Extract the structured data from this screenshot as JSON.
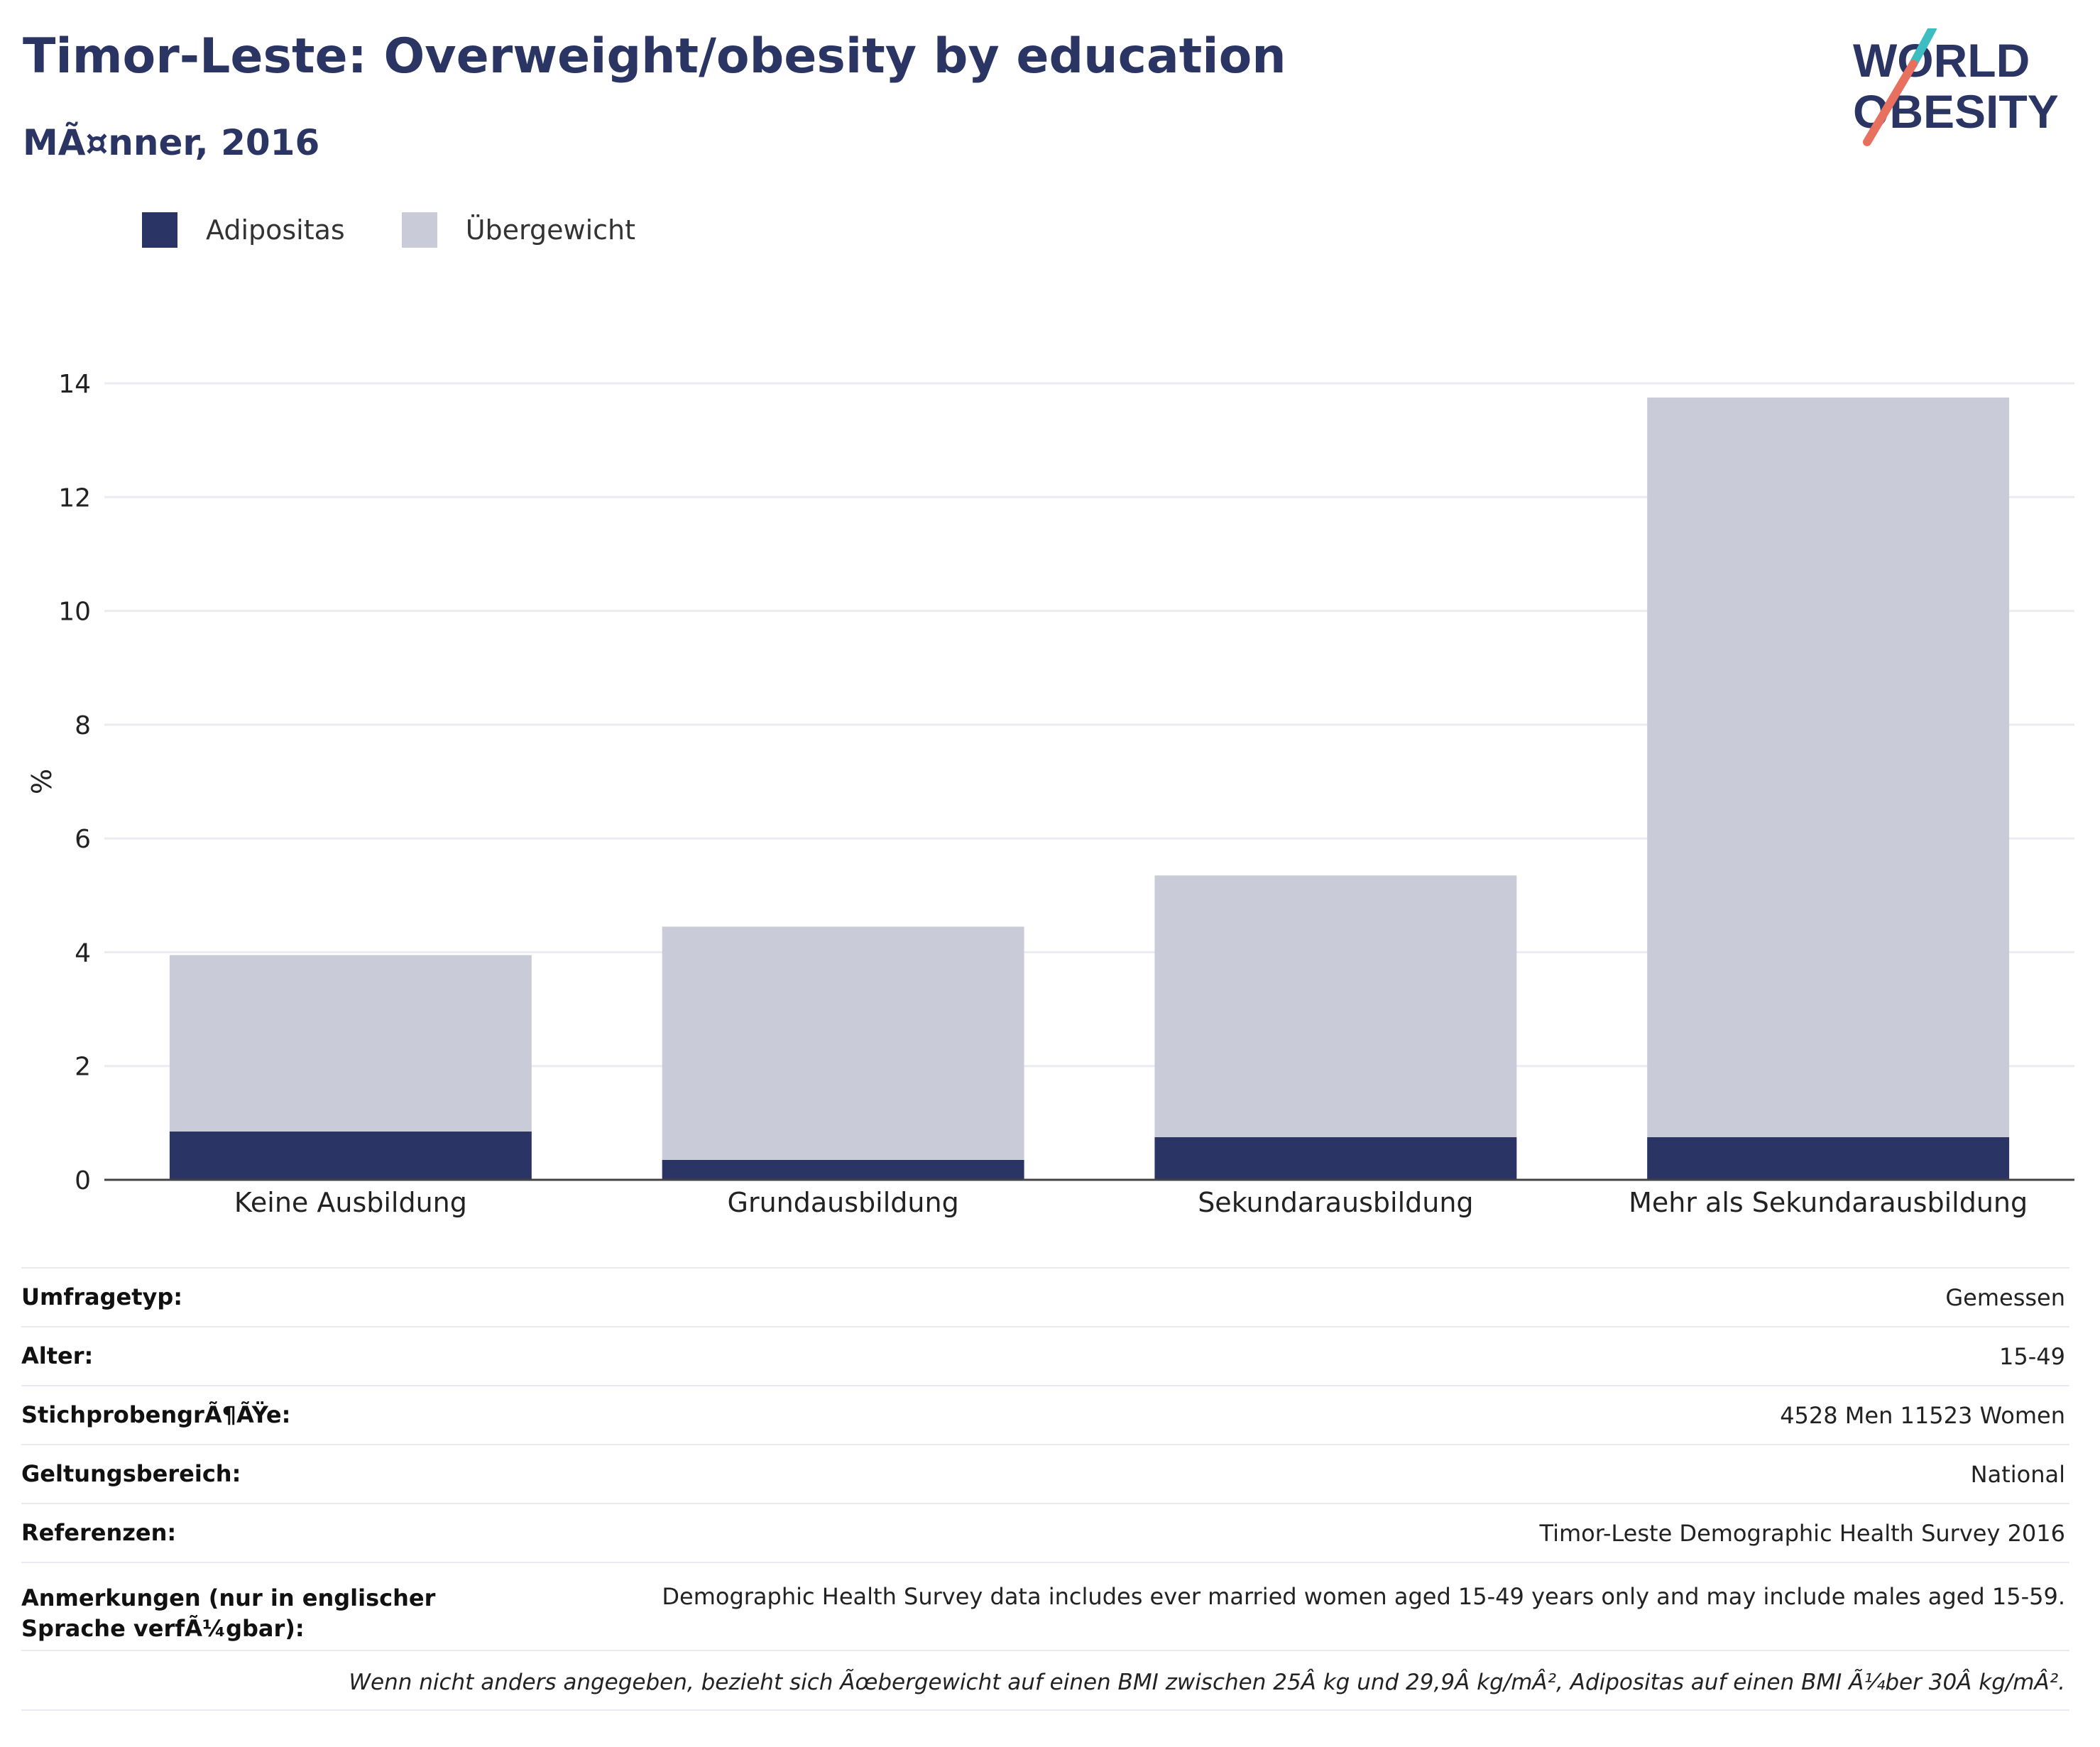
{
  "title": "Timor-Leste: Overweight/obesity by education",
  "subtitle": "MÃ¤nner, 2016",
  "logo": {
    "line1": "WORLD",
    "line2": "OBESITY"
  },
  "colors": {
    "obesity": "#2a3565",
    "overweight": "#c9ccd8",
    "title": "#2b3564",
    "accent_teal": "#3dbdc1",
    "accent_red": "#e8705f"
  },
  "legend": [
    {
      "label": "Adipositas",
      "color": "#2a3565"
    },
    {
      "label": "Übergewicht",
      "color": "#c9ccd8"
    }
  ],
  "chart_data": {
    "type": "bar",
    "stacked": true,
    "categories": [
      "Keine Ausbildung",
      "Grundausbildung",
      "Sekundarausbildung",
      "Mehr als Sekundarausbildung"
    ],
    "series": [
      {
        "name": "Adipositas",
        "values": [
          0.85,
          0.35,
          0.75,
          0.75
        ]
      },
      {
        "name": "Übergewicht",
        "values": [
          3.1,
          4.1,
          4.6,
          13.0
        ]
      }
    ],
    "ylabel": "%",
    "ylim": [
      0,
      14
    ],
    "yticks": [
      0,
      2,
      4,
      6,
      8,
      10,
      12,
      14
    ],
    "grid": true
  },
  "meta": [
    {
      "label": "Umfragetyp:",
      "value": "Gemessen"
    },
    {
      "label": "Alter:",
      "value": "15-49"
    },
    {
      "label": "StichprobengrÃ¶ÃŸe:",
      "value": "4528 Men 11523 Women"
    },
    {
      "label": "Geltungsbereich:",
      "value": "National"
    },
    {
      "label": "Referenzen:",
      "value": "Timor-Leste Demographic Health Survey 2016"
    },
    {
      "label": "Anmerkungen (nur in englischer Sprache verfÃ¼gbar):",
      "value": "Demographic Health Survey data includes ever married women aged 15-49 years only and may include males aged 15-59."
    }
  ],
  "footnote": "Wenn nicht anders angegeben, bezieht sich Ãœbergewicht auf einen BMI zwischen 25Â kg und 29,9Â kg/mÂ², Adipositas auf einen BMI Ã¼ber 30Â kg/mÂ²."
}
